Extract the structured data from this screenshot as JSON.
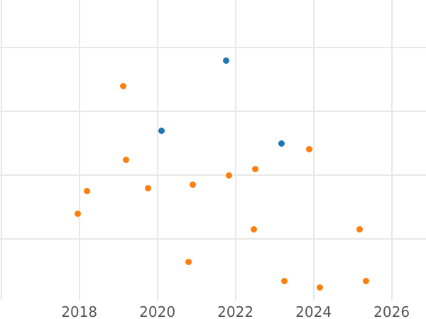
{
  "chart": {
    "background_color": "#ffffff",
    "grid_color": "#e8e8e8",
    "tick_label_color": "#555555"
  },
  "chart_data": {
    "type": "scatter",
    "title": "",
    "xlabel": "",
    "ylabel": "",
    "grid": true,
    "legend": null,
    "marker_size_px": 9,
    "x_axis": {
      "tick_labels": [
        "2018",
        "2020",
        "2022",
        "2024",
        "2026"
      ],
      "tick_values": [
        2018,
        2020,
        2022,
        2024,
        2026
      ],
      "gridline_values": [
        2016,
        2018,
        2020,
        2022,
        2024,
        2026
      ],
      "xlim": [
        2015.97,
        2026.88
      ]
    },
    "y_axis": {
      "tick_labels": [],
      "gridline_values": [
        1,
        2,
        3,
        4
      ],
      "ylim": [
        0.03,
        4.74
      ]
    },
    "series": [
      {
        "name": "blue-series",
        "color": "#1f77b4",
        "points": [
          [
            2020.11,
            2.69
          ],
          [
            2021.76,
            3.79
          ],
          [
            2023.18,
            2.49
          ]
        ]
      },
      {
        "name": "orange-series",
        "color": "#ff7f0e",
        "points": [
          [
            2017.97,
            1.39
          ],
          [
            2018.19,
            1.75
          ],
          [
            2019.12,
            3.39
          ],
          [
            2019.19,
            2.23
          ],
          [
            2019.77,
            1.79
          ],
          [
            2020.8,
            0.64
          ],
          [
            2020.91,
            1.85
          ],
          [
            2021.84,
            1.99
          ],
          [
            2022.47,
            1.15
          ],
          [
            2022.51,
            2.09
          ],
          [
            2023.25,
            0.34
          ],
          [
            2023.88,
            2.4
          ],
          [
            2024.16,
            0.23
          ],
          [
            2025.18,
            1.15
          ],
          [
            2025.35,
            0.34
          ]
        ]
      }
    ]
  }
}
